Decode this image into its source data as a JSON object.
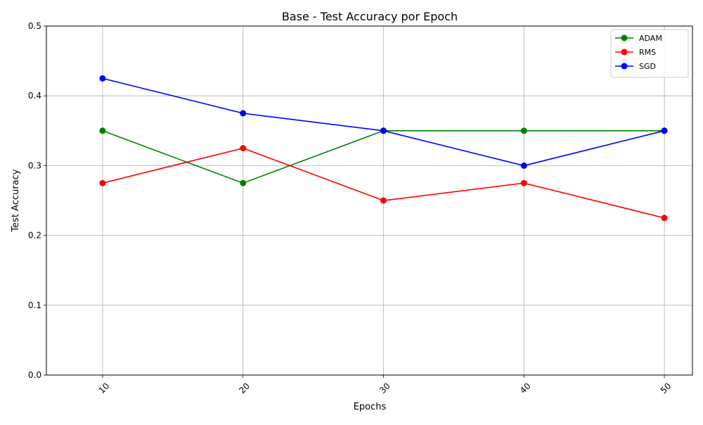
{
  "chart_data": {
    "type": "line",
    "title": "Base - Test Accuracy por Epoch",
    "xlabel": "Epochs",
    "ylabel": "Test Accuracy",
    "x": [
      10,
      20,
      30,
      40,
      50
    ],
    "x_tick_labels": [
      "10",
      "20",
      "30",
      "40",
      "50"
    ],
    "xlim": [
      6,
      52
    ],
    "ylim": [
      0,
      0.5
    ],
    "y_ticks": [
      0.0,
      0.1,
      0.2,
      0.3,
      0.4,
      0.5
    ],
    "y_tick_labels": [
      "0.0",
      "0.1",
      "0.2",
      "0.3",
      "0.4",
      "0.5"
    ],
    "grid": true,
    "legend_position": "top-right",
    "series": [
      {
        "name": "ADAM",
        "color": "#008000",
        "values": [
          0.35,
          0.275,
          0.35,
          0.35,
          0.35
        ]
      },
      {
        "name": "RMS",
        "color": "#ff0000",
        "values": [
          0.275,
          0.325,
          0.25,
          0.275,
          0.225
        ]
      },
      {
        "name": "SGD",
        "color": "#0000ff",
        "values": [
          0.425,
          0.375,
          0.35,
          0.3,
          0.35
        ]
      }
    ]
  }
}
